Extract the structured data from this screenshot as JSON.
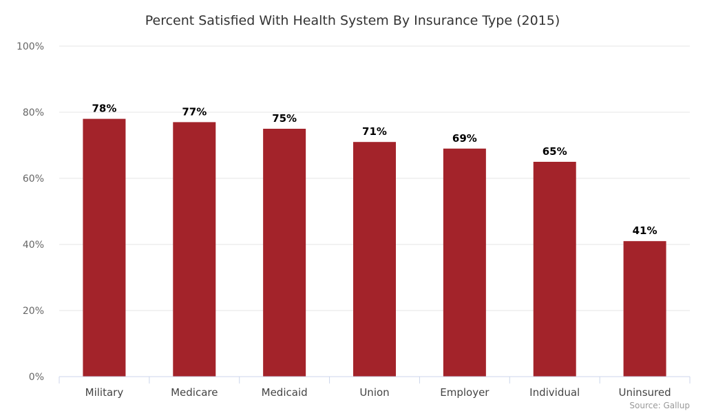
{
  "chart_data": {
    "type": "bar",
    "title": "Percent Satisfied With Health System By Insurance Type (2015)",
    "categories": [
      "Military",
      "Medicare",
      "Medicaid",
      "Union",
      "Employer",
      "Individual",
      "Uninsured"
    ],
    "values": [
      78,
      77,
      75,
      71,
      69,
      65,
      41
    ],
    "data_labels": [
      "78%",
      "77%",
      "75%",
      "71%",
      "69%",
      "65%",
      "41%"
    ],
    "ylim": [
      0,
      100
    ],
    "yticks": [
      0,
      20,
      40,
      60,
      80,
      100
    ],
    "ytick_labels": [
      "0%",
      "20%",
      "40%",
      "60%",
      "80%",
      "100%"
    ],
    "grid": true,
    "legend": "none",
    "bar_color": "#A3232A",
    "source": "Source: Gallup"
  }
}
